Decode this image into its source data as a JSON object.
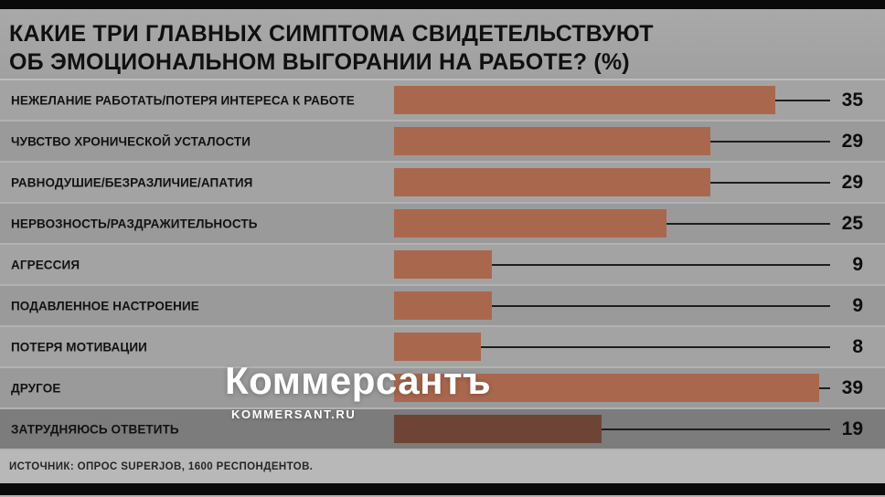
{
  "header": {
    "title_lines": [
      "КАКИЕ ТРИ ГЛАВНЫХ СИМПТОМА СВИДЕТЕЛЬСТВУЮТ",
      "ОБ ЭМОЦИОНАЛЬНОМ ВЫГОРАНИИ НА РАБОТЕ? (%)"
    ]
  },
  "chart_data": {
    "type": "bar",
    "orientation": "horizontal",
    "title": "КАКИЕ ТРИ ГЛАВНЫХ СИМПТОМА СВИДЕТЕЛЬСТВУЮТ ОБ ЭМОЦИОНАЛЬНОМ ВЫГОРАНИИ НА РАБОТЕ? (%)",
    "unit": "%",
    "xlim": [
      0,
      40
    ],
    "grid": false,
    "legend": false,
    "categories": [
      "НЕЖЕЛАНИЕ РАБОТАТЬ/ПОТЕРЯ ИНТЕРЕСА К РАБОТЕ",
      "ЧУВСТВО ХРОНИЧЕСКОЙ УСТАЛОСТИ",
      "РАВНОДУШИЕ/БЕЗРАЗЛИЧИЕ/АПАТИЯ",
      "НЕРВОЗНОСТЬ/РАЗДРАЖИТЕЛЬНОСТЬ",
      "АГРЕССИЯ",
      "ПОДАВЛЕННОЕ НАСТРОЕНИЕ",
      "ПОТЕРЯ МОТИВАЦИИ",
      "ДРУГОЕ",
      "ЗАТРУДНЯЮСЬ ОТВЕТИТЬ"
    ],
    "values": [
      35,
      29,
      29,
      25,
      9,
      9,
      8,
      39,
      19
    ],
    "bar_color": "#a9684e",
    "last_bar_color": "#6e4437"
  },
  "watermark": {
    "brand": "Коммерсантъ",
    "site": "KOMMERSANT.RU"
  },
  "footer": {
    "source": "ИСТОЧНИК: ОПРОС SUPERJOB, 1600 РЕСПОНДЕНТОВ."
  }
}
